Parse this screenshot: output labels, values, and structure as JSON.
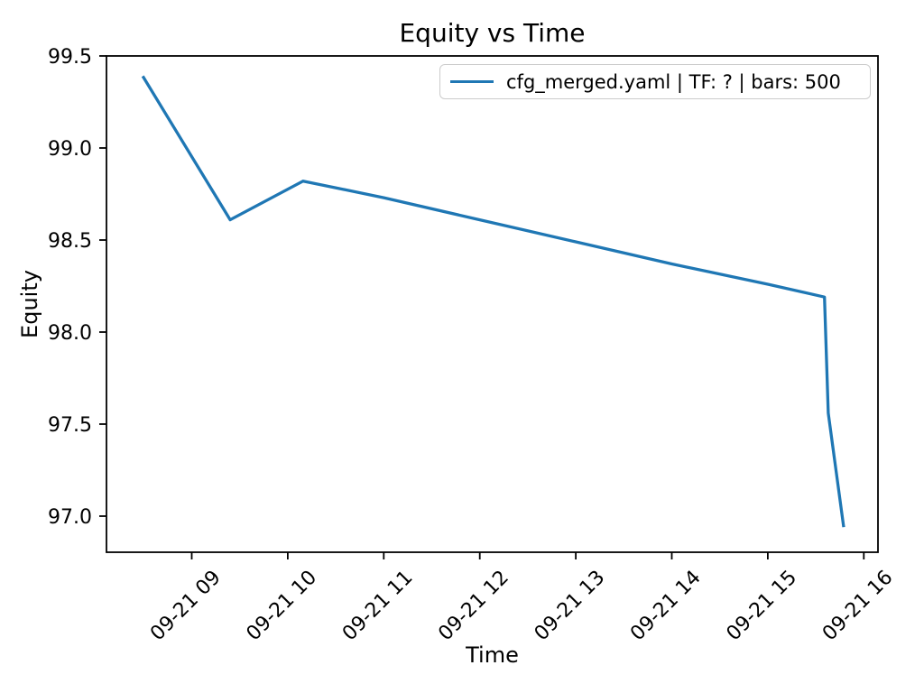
{
  "chart_data": {
    "type": "line",
    "title": "Equity vs Time",
    "xlabel": "Time",
    "ylabel": "Equity",
    "grid": false,
    "x_tick_labels": [
      "09-21 09",
      "09-21 10",
      "09-21 11",
      "09-21 12",
      "09-21 13",
      "09-21 14",
      "09-21 15",
      "09-21 16"
    ],
    "x_tick_hours": [
      9,
      10,
      11,
      12,
      13,
      14,
      15,
      16
    ],
    "y_tick_labels": [
      "99.5",
      "99.0",
      "98.5",
      "98.0",
      "97.5",
      "97.0"
    ],
    "y_tick_values": [
      99.5,
      99.0,
      98.5,
      98.0,
      97.5,
      97.0
    ],
    "xlim_hours": [
      8.11,
      16.14
    ],
    "ylim": [
      96.81,
      99.51
    ],
    "legend": {
      "position": "upper right",
      "entries": [
        {
          "label": "cfg_merged.yaml | TF: ? | bars: 500",
          "color": "#1f77b4"
        }
      ]
    },
    "series": [
      {
        "name": "cfg_merged.yaml | TF: ? | bars: 500",
        "color": "#1f77b4",
        "points": [
          {
            "time": "09-21 08:30",
            "hour": 8.49,
            "equity": 99.39
          },
          {
            "time": "09-21 09:24",
            "hour": 9.4,
            "equity": 98.61
          },
          {
            "time": "09-21 10:09",
            "hour": 10.16,
            "equity": 98.82
          },
          {
            "time": "09-21 11:00",
            "hour": 11.0,
            "equity": 98.73
          },
          {
            "time": "09-21 12:00",
            "hour": 12.0,
            "equity": 98.61
          },
          {
            "time": "09-21 13:00",
            "hour": 13.0,
            "equity": 98.49
          },
          {
            "time": "09-21 14:00",
            "hour": 14.0,
            "equity": 98.37
          },
          {
            "time": "09-21 15:00",
            "hour": 15.0,
            "equity": 98.26
          },
          {
            "time": "09-21 15:35",
            "hour": 15.59,
            "equity": 98.19
          },
          {
            "time": "09-21 15:38",
            "hour": 15.63,
            "equity": 97.56
          },
          {
            "time": "09-21 15:47",
            "hour": 15.79,
            "equity": 96.94
          }
        ]
      }
    ],
    "colors": {
      "line": "#1f77b4",
      "spine": "#000000",
      "legend_border": "#cccccc",
      "background": "#ffffff"
    }
  }
}
